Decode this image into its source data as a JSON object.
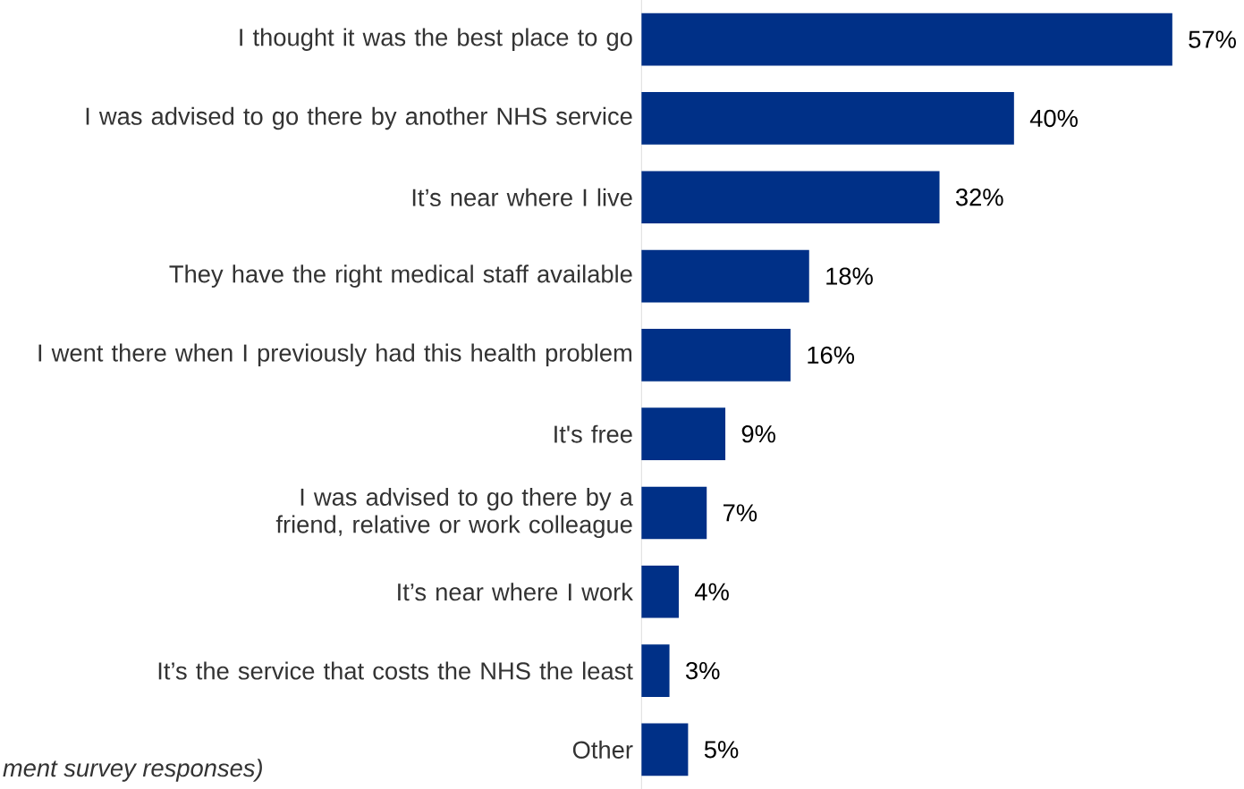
{
  "chart_data": {
    "type": "bar",
    "orientation": "horizontal",
    "categories": [
      "I thought it was the best place to go",
      "I was advised to go there by another NHS service",
      "It’s near where I live",
      "They have the right medical staff available",
      "I went there when I previously had this health problem",
      "It's free",
      "I was advised to go there by a friend, relative or work colleague",
      "It’s near where I work",
      "It’s the service that costs the NHS the least",
      "Other"
    ],
    "values": [
      57,
      40,
      32,
      18,
      16,
      9,
      7,
      4,
      3,
      5
    ],
    "value_labels": [
      "57%",
      "40%",
      "32%",
      "18%",
      "16%",
      "9%",
      "7%",
      "4%",
      "3%",
      "5%"
    ],
    "color": "#003087",
    "tick_labels": "y",
    "annotations": [
      "ment survey responses)"
    ]
  }
}
